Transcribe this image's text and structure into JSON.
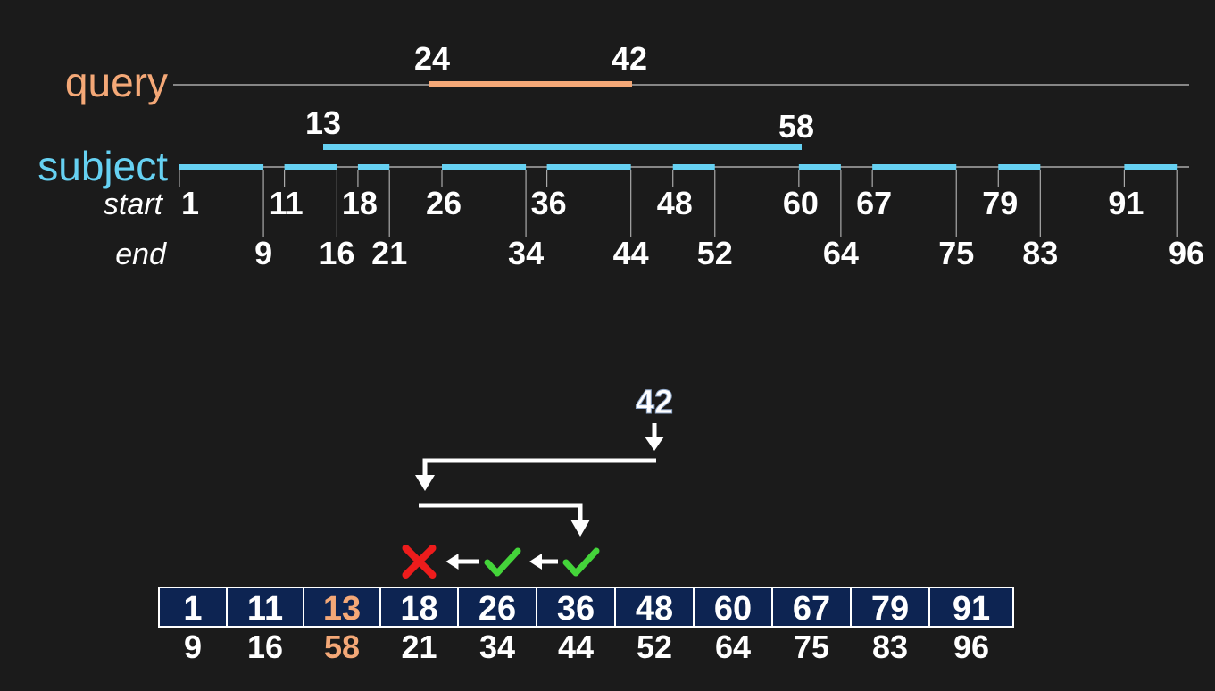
{
  "track": {
    "query_label": "query",
    "subject_label": "subject",
    "start_label": "start",
    "end_label": "end",
    "query_interval": {
      "start": "24",
      "end": "42"
    },
    "subject_interval": {
      "start": "13",
      "end": "58"
    }
  },
  "subject_intervals": [
    {
      "start": 1,
      "end": 9,
      "start_label": "1",
      "end_label": "9"
    },
    {
      "start": 11,
      "end": 16,
      "start_label": "11",
      "end_label": "16"
    },
    {
      "start": 18,
      "end": 21,
      "start_label": "18",
      "end_label": "21"
    },
    {
      "start": 26,
      "end": 34,
      "start_label": "26",
      "end_label": "34"
    },
    {
      "start": 36,
      "end": 44,
      "start_label": "36",
      "end_label": "44"
    },
    {
      "start": 48,
      "end": 52,
      "start_label": "48",
      "end_label": "52"
    },
    {
      "start": 60,
      "end": 64,
      "start_label": "60",
      "end_label": "64"
    },
    {
      "start": 67,
      "end": 75,
      "start_label": "67",
      "end_label": "75"
    },
    {
      "start": 79,
      "end": 83,
      "start_label": "79",
      "end_label": "83"
    },
    {
      "start": 91,
      "end": 96,
      "start_label": "91",
      "end_label": "96"
    }
  ],
  "search": {
    "key": "42",
    "cells": [
      {
        "start": "1",
        "end": "9",
        "highlight": false
      },
      {
        "start": "11",
        "end": "16",
        "highlight": false
      },
      {
        "start": "13",
        "end": "58",
        "highlight": true
      },
      {
        "start": "18",
        "end": "21",
        "highlight": false
      },
      {
        "start": "26",
        "end": "34",
        "highlight": false
      },
      {
        "start": "36",
        "end": "44",
        "highlight": false
      },
      {
        "start": "48",
        "end": "52",
        "highlight": false
      },
      {
        "start": "60",
        "end": "64",
        "highlight": false
      },
      {
        "start": "67",
        "end": "75",
        "highlight": false
      },
      {
        "start": "79",
        "end": "83",
        "highlight": false
      },
      {
        "start": "91",
        "end": "96",
        "highlight": false
      }
    ],
    "checks": [
      {
        "cell": 3,
        "status": "fail"
      },
      {
        "cell": 4,
        "status": "pass"
      },
      {
        "cell": 5,
        "status": "pass"
      }
    ]
  },
  "colors": {
    "background": "#1b1b1b",
    "query": "#f4a877",
    "subject": "#66d1f2",
    "cell_fill": "#0d2452",
    "cell_border": "#ffffff",
    "check": "#44d43a",
    "cross": "#ee1c1c",
    "text": "#ffffff",
    "axis": "#aaaaaa"
  }
}
